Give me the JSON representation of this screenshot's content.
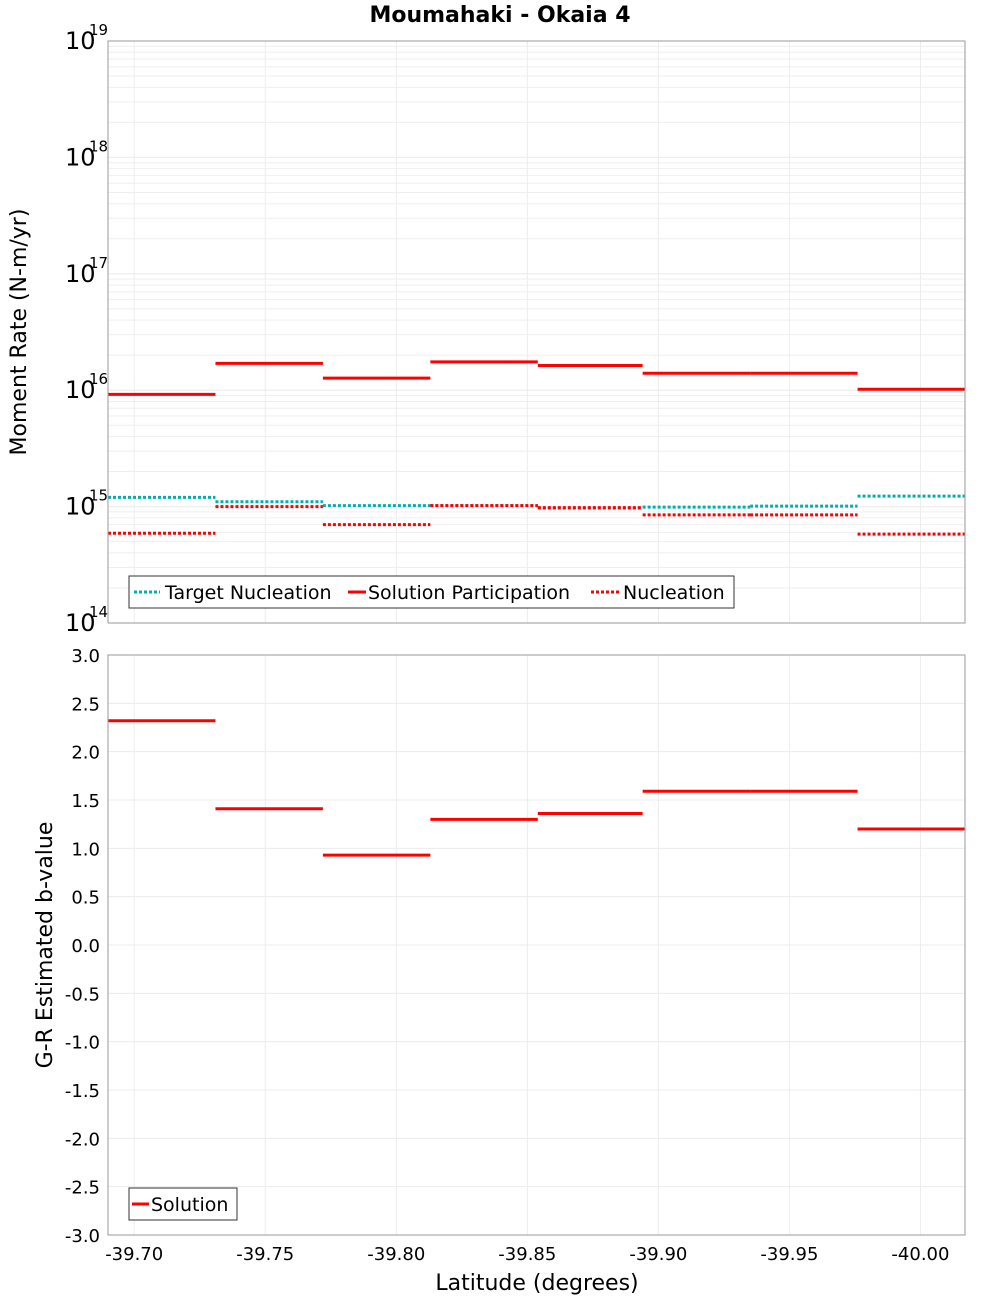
{
  "chart_data": [
    {
      "type": "line",
      "title": "Moumahaki - Okaia 4",
      "ylabel": "Moment Rate (N-m/yr)",
      "yscale": "log",
      "ylim": [
        100000000000000.0,
        1e+19
      ],
      "xlim": [
        -39.69,
        -40.017
      ],
      "grid": true,
      "legend_position": "bottom-left",
      "y_tick_base": "10",
      "y_tick_exponents": [
        "14",
        "15",
        "16",
        "17",
        "18",
        "19"
      ],
      "series": [
        {
          "name": "Target Nucleation",
          "color": "#00b0b0",
          "style": "dotted",
          "segments": [
            {
              "x": [
                -39.69,
                -39.731
              ],
              "y": 1200000000000000.0
            },
            {
              "x": [
                -39.731,
                -39.772
              ],
              "y": 1100000000000000.0
            },
            {
              "x": [
                -39.772,
                -39.813
              ],
              "y": 1020000000000000.0
            },
            {
              "x": [
                -39.813,
                -39.854
              ],
              "y": 1020000000000000.0
            },
            {
              "x": [
                -39.854,
                -39.894
              ],
              "y": 970000000000000.0
            },
            {
              "x": [
                -39.894,
                -39.935
              ],
              "y": 990000000000000.0
            },
            {
              "x": [
                -39.935,
                -39.976
              ],
              "y": 1010000000000000.0
            },
            {
              "x": [
                -39.976,
                -40.017
              ],
              "y": 1230000000000000.0
            }
          ]
        },
        {
          "name": "Solution Participation",
          "color": "#ff0000",
          "style": "solid",
          "segments": [
            {
              "x": [
                -39.69,
                -39.731
              ],
              "y": 9200000000000000.0
            },
            {
              "x": [
                -39.731,
                -39.772
              ],
              "y": 1.7e+16
            },
            {
              "x": [
                -39.772,
                -39.813
              ],
              "y": 1.27e+16
            },
            {
              "x": [
                -39.813,
                -39.854
              ],
              "y": 1.75e+16
            },
            {
              "x": [
                -39.854,
                -39.894
              ],
              "y": 1.63e+16
            },
            {
              "x": [
                -39.894,
                -39.935
              ],
              "y": 1.4e+16
            },
            {
              "x": [
                -39.935,
                -39.976
              ],
              "y": 1.4e+16
            },
            {
              "x": [
                -39.976,
                -40.017
              ],
              "y": 1.02e+16
            }
          ]
        },
        {
          "name": "Nucleation",
          "color": "#ff0000",
          "style": "dotted",
          "segments": [
            {
              "x": [
                -39.69,
                -39.731
              ],
              "y": 590000000000000.0
            },
            {
              "x": [
                -39.731,
                -39.772
              ],
              "y": 1000000000000000.0
            },
            {
              "x": [
                -39.772,
                -39.813
              ],
              "y": 700000000000000.0
            },
            {
              "x": [
                -39.813,
                -39.854
              ],
              "y": 1020000000000000.0
            },
            {
              "x": [
                -39.854,
                -39.894
              ],
              "y": 980000000000000.0
            },
            {
              "x": [
                -39.894,
                -39.935
              ],
              "y": 850000000000000.0
            },
            {
              "x": [
                -39.935,
                -39.976
              ],
              "y": 850000000000000.0
            },
            {
              "x": [
                -39.976,
                -40.017
              ],
              "y": 580000000000000.0
            }
          ]
        }
      ]
    },
    {
      "type": "line",
      "xlabel": "Latitude (degrees)",
      "ylabel": "G-R Estimated b-value",
      "ylim": [
        -3.0,
        3.0
      ],
      "xlim": [
        -39.69,
        -40.017
      ],
      "grid": true,
      "legend_position": "bottom-left",
      "y_ticks": [
        "3.0",
        "2.5",
        "2.0",
        "1.5",
        "1.0",
        "0.5",
        "0.0",
        "-0.5",
        "-1.0",
        "-1.5",
        "-2.0",
        "-2.5",
        "-3.0"
      ],
      "x_ticks": [
        "-39.70",
        "-39.75",
        "-39.80",
        "-39.85",
        "-39.90",
        "-39.95",
        "-40.00"
      ],
      "series": [
        {
          "name": "Solution",
          "color": "#ff0000",
          "style": "solid",
          "segments": [
            {
              "x": [
                -39.69,
                -39.731
              ],
              "y": 2.32
            },
            {
              "x": [
                -39.731,
                -39.772
              ],
              "y": 1.41
            },
            {
              "x": [
                -39.772,
                -39.813
              ],
              "y": 0.93
            },
            {
              "x": [
                -39.813,
                -39.854
              ],
              "y": 1.3
            },
            {
              "x": [
                -39.854,
                -39.894
              ],
              "y": 1.36
            },
            {
              "x": [
                -39.894,
                -39.935
              ],
              "y": 1.59
            },
            {
              "x": [
                -39.935,
                -39.976
              ],
              "y": 1.59
            },
            {
              "x": [
                -39.976,
                -40.017
              ],
              "y": 1.2
            }
          ]
        }
      ]
    }
  ]
}
